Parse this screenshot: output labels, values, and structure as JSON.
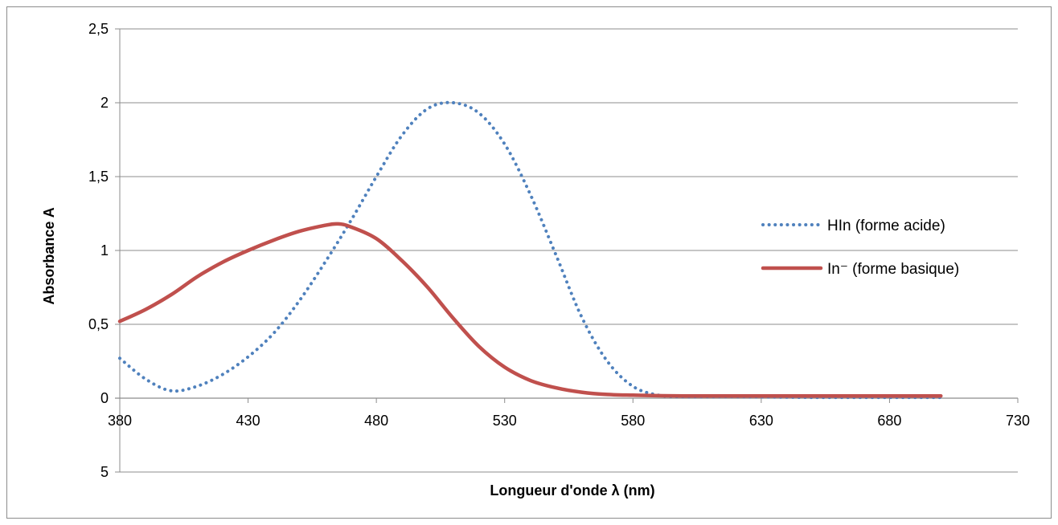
{
  "chart_data": {
    "type": "line",
    "xlabel": "Longueur d'onde λ (nm)",
    "ylabel": "Absorbance A",
    "xlim": [
      380,
      730
    ],
    "ylim": [
      0,
      2.5
    ],
    "x_ticks": [
      "380",
      "430",
      "480",
      "530",
      "580",
      "630",
      "680",
      "730"
    ],
    "y_ticks": [
      "0",
      "0,5",
      "1",
      "1,5",
      "2",
      "2,5"
    ],
    "extra_y_tick": "5",
    "grid": true,
    "legend_position": "right",
    "series": [
      {
        "name": "HIn (forme acide)",
        "style": "dotted",
        "color": "#4f81bd",
        "x": [
          380,
          390,
          400,
          410,
          420,
          430,
          440,
          450,
          460,
          470,
          480,
          490,
          500,
          510,
          520,
          530,
          540,
          550,
          560,
          570,
          580,
          590,
          600,
          620,
          650,
          680,
          700
        ],
        "y": [
          0.27,
          0.13,
          0.05,
          0.08,
          0.16,
          0.28,
          0.44,
          0.66,
          0.92,
          1.2,
          1.5,
          1.78,
          1.96,
          2.0,
          1.93,
          1.72,
          1.38,
          0.97,
          0.55,
          0.25,
          0.08,
          0.02,
          0.01,
          0.01,
          0.005,
          0.005,
          0.005
        ]
      },
      {
        "name": "In⁻ (forme basique)",
        "style": "solid",
        "color": "#c0504d",
        "x": [
          380,
          390,
          400,
          410,
          420,
          430,
          440,
          450,
          460,
          465,
          470,
          480,
          490,
          500,
          510,
          520,
          530,
          540,
          550,
          560,
          570,
          580,
          600,
          650,
          700
        ],
        "y": [
          0.52,
          0.6,
          0.7,
          0.82,
          0.92,
          1.0,
          1.07,
          1.13,
          1.17,
          1.18,
          1.16,
          1.08,
          0.93,
          0.75,
          0.54,
          0.35,
          0.21,
          0.12,
          0.07,
          0.04,
          0.025,
          0.02,
          0.015,
          0.015,
          0.015
        ]
      }
    ]
  }
}
